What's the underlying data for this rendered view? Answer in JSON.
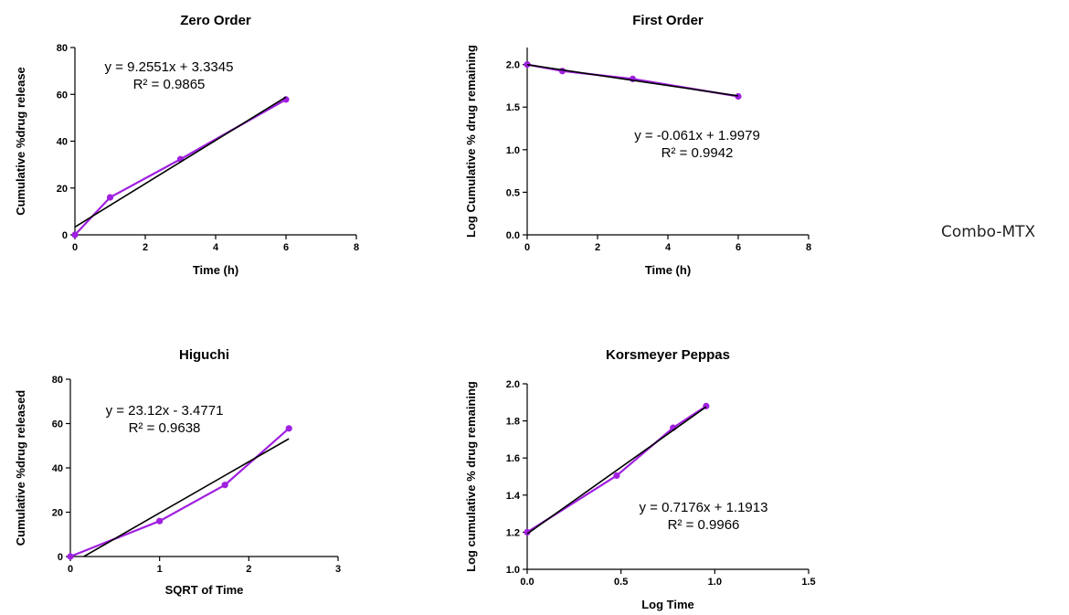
{
  "side_label": "Combo-MTX",
  "colors": {
    "series": "#A020E0",
    "marker": "#A020E0",
    "fit": "#000000"
  },
  "chart_data": [
    {
      "type": "scatter",
      "title": "Zero Order",
      "xlabel": "Time (h)",
      "ylabel": "Cumulative %drug release",
      "xlim": [
        0,
        8
      ],
      "ylim": [
        0,
        80
      ],
      "xticks": [
        0,
        2,
        4,
        6,
        8
      ],
      "yticks": [
        0,
        20,
        40,
        60,
        80
      ],
      "x_tick_labels": [
        "0",
        "2",
        "4",
        "6",
        "8"
      ],
      "y_tick_labels": [
        "0",
        "20",
        "40",
        "60",
        "80"
      ],
      "series": [
        {
          "x": [
            0,
            1,
            3,
            6
          ],
          "y": [
            0,
            16,
            32.3,
            57.8
          ]
        }
      ],
      "fit": {
        "slope": 9.2551,
        "intercept": 3.3345,
        "x_range": [
          0,
          6
        ]
      },
      "equation": "y = 9.2551x + 3.3345",
      "r_squared": "R² = 0.9865",
      "grid": false
    },
    {
      "type": "scatter",
      "title": "First Order",
      "xlabel": "Time (h)",
      "ylabel": "Log Cumulative % drug remaining",
      "xlim": [
        0,
        8
      ],
      "ylim": [
        0,
        2.2
      ],
      "xticks": [
        0,
        2,
        4,
        6,
        8
      ],
      "yticks": [
        0,
        0.5,
        1.0,
        1.5,
        2.0
      ],
      "x_tick_labels": [
        "0",
        "2",
        "4",
        "6",
        "8"
      ],
      "y_tick_labels": [
        "0.0",
        "0.5",
        "1.0",
        "1.5",
        "2.0"
      ],
      "series": [
        {
          "x": [
            0,
            1,
            3,
            6
          ],
          "y": [
            2.0,
            1.924,
            1.831,
            1.626
          ]
        }
      ],
      "fit": {
        "slope": -0.061,
        "intercept": 1.9979,
        "x_range": [
          0,
          6
        ]
      },
      "equation": "y = -0.061x + 1.9979",
      "r_squared": "R² = 0.9942",
      "grid": false
    },
    {
      "type": "scatter",
      "title": "Higuchi",
      "xlabel": "SQRT of Time",
      "ylabel": "Cumulative %drug released",
      "xlim": [
        0,
        3
      ],
      "ylim": [
        0,
        80
      ],
      "xticks": [
        0,
        1,
        2,
        3
      ],
      "yticks": [
        0,
        20,
        40,
        60,
        80
      ],
      "x_tick_labels": [
        "0",
        "1",
        "2",
        "3"
      ],
      "y_tick_labels": [
        "0",
        "20",
        "40",
        "60",
        "80"
      ],
      "series": [
        {
          "x": [
            0,
            1,
            1.732,
            2.449
          ],
          "y": [
            0,
            16,
            32.3,
            57.8
          ]
        }
      ],
      "fit": {
        "slope": 23.12,
        "intercept": -3.4771,
        "x_range": [
          0.15,
          2.449
        ]
      },
      "equation": "y = 23.12x - 3.4771",
      "r_squared": "R² = 0.9638",
      "grid": false
    },
    {
      "type": "scatter",
      "title": "Korsmeyer Peppas",
      "xlabel": "Log Time",
      "ylabel": "Log cumulative % drug remaining",
      "xlim": [
        0,
        1.5
      ],
      "ylim": [
        1.0,
        2.0
      ],
      "xticks": [
        0,
        0.5,
        1.0,
        1.5
      ],
      "yticks": [
        1.0,
        1.2,
        1.4,
        1.6,
        1.8,
        2.0
      ],
      "x_tick_labels": [
        "0.0",
        "0.5",
        "1.0",
        "1.5"
      ],
      "y_tick_labels": [
        "1.0",
        "1.2",
        "1.4",
        "1.6",
        "1.8",
        "2.0"
      ],
      "series": [
        {
          "x": [
            0,
            0.477,
            0.778,
            0.954
          ],
          "y": [
            1.2,
            1.505,
            1.763,
            1.88
          ]
        }
      ],
      "fit": {
        "slope": 0.7176,
        "intercept": 1.1913,
        "x_range": [
          0,
          0.954
        ]
      },
      "equation": "y = 0.7176x + 1.1913",
      "r_squared": "R² = 0.9966",
      "grid": false
    }
  ]
}
